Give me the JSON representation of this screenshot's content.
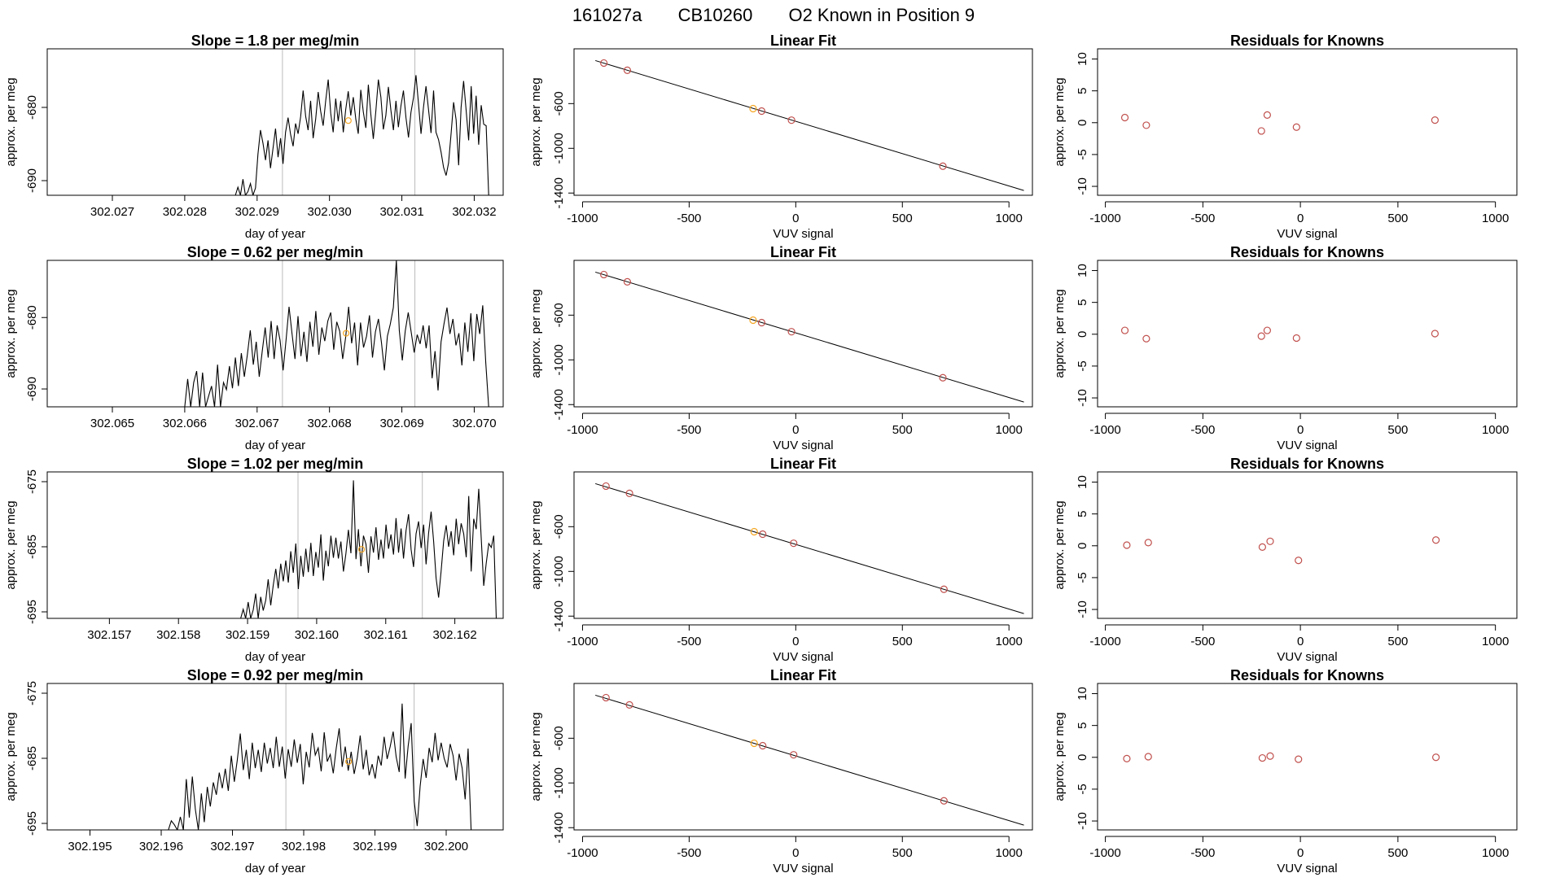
{
  "figure_title": {
    "run_id": "161027a",
    "cylinder": "CB10260",
    "label": "O2 Known in Position  9"
  },
  "colors": {
    "trace": "#000000",
    "marker_open": "#c0504d",
    "marker_highlight": "#f5a623",
    "vline": "#bbbbbb",
    "axis": "#000000"
  },
  "chart_data": [
    {
      "type": "line",
      "row": 1,
      "col": 1,
      "title_prefix": "Slope = ",
      "title_value": "1.8",
      "title_suffix": " per meg/min",
      "xlabel": "day of year",
      "ylabel": "approx. per meg",
      "xlim": [
        302.0261,
        302.0324
      ],
      "ylim": [
        -692,
        -672
      ],
      "xticks": [
        "302.027",
        "302.028",
        "302.029",
        "302.030",
        "302.031",
        "302.032"
      ],
      "yticks": [
        "-680",
        "-690"
      ],
      "vlines": [
        302.02935,
        302.03118
      ],
      "x_start": 302.0287,
      "x_end": 302.0322,
      "marker": {
        "x": 302.03026,
        "y": -681.8
      },
      "y": [
        -692,
        -690.9,
        -692,
        -689.8,
        -692,
        -691.5,
        -690.4,
        -692,
        -691.0,
        -686.4,
        -683.1,
        -684.9,
        -687.2,
        -684.5,
        -688.3,
        -685.6,
        -682.9,
        -686.8,
        -684.2,
        -687.7,
        -683.4,
        -681.4,
        -683.7,
        -685.3,
        -682.2,
        -683.6,
        -681.3,
        -677.7,
        -681.2,
        -683.1,
        -679.1,
        -684.2,
        -681.6,
        -677.9,
        -680.5,
        -682.5,
        -679.1,
        -676.2,
        -680.8,
        -683.4,
        -678.8,
        -681.9,
        -679.1,
        -683.4,
        -680.3,
        -677.8,
        -681.1,
        -678.6,
        -681.6,
        -683.6,
        -677.6,
        -680.6,
        -682.8,
        -676.9,
        -680.9,
        -684.3,
        -680.5,
        -676.2,
        -678.6,
        -683.0,
        -681.1,
        -677.2,
        -680.4,
        -683.1,
        -679.1,
        -682.7,
        -679.8,
        -677.7,
        -681.4,
        -684.1,
        -680.7,
        -678.7,
        -675.6,
        -679.5,
        -683.6,
        -680.0,
        -677.1,
        -680.3,
        -683.5,
        -677.7,
        -683.4,
        -684.4,
        -686.1,
        -688.2,
        -689.3,
        -687.6,
        -683.6,
        -679.3,
        -681.7,
        -687.9,
        -680.0,
        -676.4,
        -680.4,
        -684.5,
        -677.1,
        -683.6,
        -678.4,
        -685.1,
        -679.7,
        -682.3,
        -682.5,
        -692
      ]
    },
    {
      "type": "scatter",
      "row": 1,
      "col": 2,
      "title": "Linear Fit",
      "xlabel": "VUV signal",
      "ylabel": "approx. per meg",
      "xlim": [
        -1040,
        1110
      ],
      "ylim": [
        -1420,
        -110
      ],
      "xticks": [
        -1000,
        -500,
        0,
        500,
        1000
      ],
      "yticks": [
        -600,
        -1000,
        -1400
      ],
      "fit_line": [
        [
          -940,
          -215
        ],
        [
          1070,
          -1377
        ]
      ],
      "points": [
        [
          -900,
          -237,
          "open"
        ],
        [
          -790,
          -302,
          "open"
        ],
        [
          -200,
          -645,
          "highlight"
        ],
        [
          -160,
          -667,
          "open"
        ],
        [
          -20,
          -748,
          "open"
        ],
        [
          690,
          -1160,
          "open"
        ]
      ]
    },
    {
      "type": "scatter",
      "row": 1,
      "col": 3,
      "title": "Residuals for Knowns",
      "xlabel": "VUV signal",
      "ylabel": "approx. per meg",
      "xlim": [
        -1040,
        1110
      ],
      "ylim": [
        -11.4,
        11.6
      ],
      "xticks": [
        -1000,
        -500,
        0,
        500,
        1000
      ],
      "yticks": [
        10,
        5,
        0,
        -5,
        -10
      ],
      "points": [
        [
          -900,
          0.8
        ],
        [
          -790,
          -0.4
        ],
        [
          -200,
          -1.3
        ],
        [
          -170,
          1.2
        ],
        [
          -20,
          -0.7
        ],
        [
          690,
          0.4
        ]
      ]
    },
    {
      "type": "line",
      "row": 2,
      "col": 1,
      "title_prefix": "Slope = ",
      "title_value": "0.62",
      "title_suffix": " per meg/min",
      "xlabel": "day of year",
      "ylabel": "approx. per meg",
      "xlim": [
        302.0641,
        302.0704
      ],
      "ylim": [
        -692.5,
        -672
      ],
      "xticks": [
        "302.065",
        "302.066",
        "302.067",
        "302.068",
        "302.069",
        "302.070"
      ],
      "yticks": [
        "-680",
        "-690"
      ],
      "vlines": [
        302.06735,
        302.06918
      ],
      "x_start": 302.066,
      "x_end": 302.0702,
      "marker": {
        "x": 302.06823,
        "y": -682.2
      },
      "y": [
        -692.5,
        -688.6,
        -692.5,
        -689.1,
        -687.5,
        -692.5,
        -687.7,
        -692.5,
        -691.0,
        -689.6,
        -692.5,
        -686.6,
        -692.5,
        -689.1,
        -690.1,
        -686.8,
        -689.9,
        -685.6,
        -689.6,
        -685.0,
        -688.3,
        -685.2,
        -681.8,
        -686.6,
        -683.4,
        -688.3,
        -684.7,
        -681.4,
        -685.6,
        -680.5,
        -685.8,
        -681.1,
        -683.2,
        -687.4,
        -683.2,
        -678.5,
        -682.3,
        -685.8,
        -679.8,
        -685.4,
        -682.0,
        -686.2,
        -680.6,
        -684.1,
        -679.1,
        -685.2,
        -681.4,
        -683.3,
        -680.5,
        -679.3,
        -684.5,
        -680.6,
        -681.9,
        -685.8,
        -682.8,
        -678.5,
        -683.6,
        -680.7,
        -686.7,
        -680.7,
        -684.2,
        -682.6,
        -679.7,
        -685.6,
        -682.0,
        -680.2,
        -683.5,
        -687.4,
        -682.6,
        -680.9,
        -678.6,
        -672.0,
        -681.8,
        -686.0,
        -681.9,
        -679.3,
        -682.1,
        -684.9,
        -682.4,
        -683.7,
        -681.1,
        -684.3,
        -681.1,
        -688.5,
        -684.7,
        -690.2,
        -683.4,
        -680.9,
        -678.6,
        -682.3,
        -680.2,
        -683.9,
        -682.2,
        -686.7,
        -680.7,
        -684.8,
        -679.4,
        -686.1,
        -679.5,
        -682.3,
        -678.3,
        -686.3,
        -692.5
      ]
    },
    {
      "type": "scatter",
      "row": 2,
      "col": 2,
      "title": "Linear Fit",
      "xlabel": "VUV signal",
      "ylabel": "approx. per meg",
      "xlim": [
        -1040,
        1110
      ],
      "ylim": [
        -1420,
        -110
      ],
      "xticks": [
        -1000,
        -500,
        0,
        500,
        1000
      ],
      "yticks": [
        -600,
        -1000,
        -1400
      ],
      "fit_line": [
        [
          -940,
          -215
        ],
        [
          1070,
          -1377
        ]
      ],
      "points": [
        [
          -900,
          -237,
          "open"
        ],
        [
          -790,
          -302,
          "open"
        ],
        [
          -200,
          -645,
          "highlight"
        ],
        [
          -160,
          -667,
          "open"
        ],
        [
          -20,
          -748,
          "open"
        ],
        [
          690,
          -1160,
          "open"
        ]
      ]
    },
    {
      "type": "scatter",
      "row": 2,
      "col": 3,
      "title": "Residuals for Knowns",
      "xlabel": "VUV signal",
      "ylabel": "approx. per meg",
      "xlim": [
        -1040,
        1110
      ],
      "ylim": [
        -11.4,
        11.6
      ],
      "xticks": [
        -1000,
        -500,
        0,
        500,
        1000
      ],
      "yticks": [
        10,
        5,
        0,
        -5,
        -10
      ],
      "points": [
        [
          -900,
          0.6
        ],
        [
          -790,
          -0.7
        ],
        [
          -200,
          -0.3
        ],
        [
          -170,
          0.6
        ],
        [
          -20,
          -0.6
        ],
        [
          690,
          0.1
        ]
      ]
    },
    {
      "type": "line",
      "row": 3,
      "col": 1,
      "title_prefix": "Slope = ",
      "title_value": "1.02",
      "title_suffix": " per meg/min",
      "xlabel": "day of year",
      "ylabel": "approx. per meg",
      "xlim": [
        302.1561,
        302.1627
      ],
      "ylim": [
        -696,
        -673.5
      ],
      "xticks": [
        "302.157",
        "302.158",
        "302.159",
        "302.160",
        "302.161",
        "302.162"
      ],
      "yticks": [
        "-675",
        "-685",
        "-695"
      ],
      "vlines": [
        302.15973,
        302.16153
      ],
      "x_start": 302.1589,
      "x_end": 302.1626,
      "marker": {
        "x": 302.16065,
        "y": -685.4
      },
      "y": [
        -696,
        -694.6,
        -696,
        -693.5,
        -696,
        -694.7,
        -692.2,
        -696,
        -692.7,
        -694.8,
        -693.2,
        -690.0,
        -694.0,
        -690.9,
        -688.4,
        -691.4,
        -687.6,
        -690.3,
        -687.1,
        -690.5,
        -685.7,
        -689.0,
        -684.5,
        -691.5,
        -686.4,
        -689.6,
        -685.3,
        -688.9,
        -684.4,
        -689.5,
        -685.8,
        -688.2,
        -683.1,
        -690.2,
        -685.6,
        -688.0,
        -683.3,
        -686.7,
        -683.6,
        -686.8,
        -684.2,
        -688.8,
        -686.1,
        -682.4,
        -686.0,
        -674.8,
        -686.9,
        -682.3,
        -688.0,
        -683.3,
        -684.6,
        -689.0,
        -683.4,
        -685.9,
        -682.0,
        -687.0,
        -683.9,
        -686.8,
        -681.6,
        -685.3,
        -683.1,
        -686.2,
        -680.6,
        -685.9,
        -682.2,
        -686.8,
        -682.5,
        -680.0,
        -685.4,
        -688.1,
        -683.0,
        -681.1,
        -685.2,
        -681.6,
        -687.7,
        -682.9,
        -679.6,
        -684.2,
        -689.8,
        -692.8,
        -688.7,
        -684.1,
        -681.7,
        -685.0,
        -682.6,
        -686.3,
        -680.7,
        -684.6,
        -681.4,
        -683.0,
        -686.6,
        -677.2,
        -688.8,
        -680.7,
        -682.3,
        -676.1,
        -683.6,
        -691.0,
        -687.5,
        -684.5,
        -685.1,
        -683.3,
        -696
      ]
    },
    {
      "type": "scatter",
      "row": 3,
      "col": 2,
      "title": "Linear Fit",
      "xlabel": "VUV signal",
      "ylabel": "approx. per meg",
      "xlim": [
        -1040,
        1110
      ],
      "ylim": [
        -1420,
        -110
      ],
      "xticks": [
        -1000,
        -500,
        0,
        500,
        1000
      ],
      "yticks": [
        -600,
        -1000,
        -1400
      ],
      "fit_line": [
        [
          -940,
          -215
        ],
        [
          1070,
          -1377
        ]
      ],
      "points": [
        [
          -890,
          -237,
          "open"
        ],
        [
          -780,
          -302,
          "open"
        ],
        [
          -195,
          -645,
          "highlight"
        ],
        [
          -155,
          -667,
          "open"
        ],
        [
          -10,
          -748,
          "open"
        ],
        [
          695,
          -1160,
          "open"
        ]
      ]
    },
    {
      "type": "scatter",
      "row": 3,
      "col": 3,
      "title": "Residuals for Knowns",
      "xlabel": "VUV signal",
      "ylabel": "approx. per meg",
      "xlim": [
        -1040,
        1110
      ],
      "ylim": [
        -11.4,
        11.6
      ],
      "xticks": [
        -1000,
        -500,
        0,
        500,
        1000
      ],
      "yticks": [
        10,
        5,
        0,
        -5,
        -10
      ],
      "points": [
        [
          -890,
          0.1
        ],
        [
          -780,
          0.5
        ],
        [
          -195,
          -0.2
        ],
        [
          -155,
          0.7
        ],
        [
          -10,
          -2.3
        ],
        [
          695,
          0.9
        ]
      ]
    },
    {
      "type": "line",
      "row": 4,
      "col": 1,
      "title_prefix": "Slope = ",
      "title_value": "0.92",
      "title_suffix": " per meg/min",
      "xlabel": "day of year",
      "ylabel": "approx. per meg",
      "xlim": [
        302.1944,
        302.2008
      ],
      "ylim": [
        -696,
        -673.5
      ],
      "xticks": [
        "302.195",
        "302.196",
        "302.197",
        "302.198",
        "302.199",
        "302.200"
      ],
      "yticks": [
        "-675",
        "-685",
        "-695"
      ],
      "vlines": [
        302.19775,
        302.19955
      ],
      "x_start": 302.1961,
      "x_end": 302.20035,
      "marker": {
        "x": 302.19863,
        "y": -685.5
      },
      "y": [
        -696,
        -694.6,
        -695.2,
        -696,
        -694.0,
        -696,
        -688.2,
        -694.1,
        -687.8,
        -692.8,
        -696,
        -690.4,
        -694.8,
        -689.4,
        -692.4,
        -688.7,
        -690.6,
        -687.2,
        -689.6,
        -686.6,
        -690.0,
        -684.6,
        -688.6,
        -685.3,
        -681.2,
        -686.8,
        -683.7,
        -688.2,
        -682.6,
        -686.5,
        -683.7,
        -687.1,
        -682.6,
        -685.8,
        -683.4,
        -686.5,
        -681.7,
        -686.3,
        -683.2,
        -688.1,
        -683.6,
        -686.3,
        -682.1,
        -685.7,
        -682.8,
        -689.0,
        -684.0,
        -686.4,
        -681.1,
        -684.5,
        -683.4,
        -687.0,
        -681.0,
        -685.5,
        -684.4,
        -687.3,
        -683.5,
        -680.4,
        -686.3,
        -683.2,
        -686.9,
        -684.0,
        -687.4,
        -685.0,
        -681.5,
        -686.7,
        -683.7,
        -687.6,
        -685.9,
        -688.1,
        -684.6,
        -686.1,
        -681.7,
        -685.1,
        -683.2,
        -680.9,
        -684.8,
        -687.1,
        -676.6,
        -688.1,
        -683.1,
        -679.6,
        -691.6,
        -695.4,
        -689.3,
        -685.1,
        -688.0,
        -683.4,
        -685.6,
        -681.1,
        -685.3,
        -682.6,
        -685.0,
        -686.4,
        -682.8,
        -684.6,
        -688.4,
        -684.3,
        -686.5,
        -691.3,
        -683.5,
        -696
      ]
    },
    {
      "type": "scatter",
      "row": 4,
      "col": 2,
      "title": "Linear Fit",
      "xlabel": "VUV signal",
      "ylabel": "approx. per meg",
      "xlim": [
        -1040,
        1110
      ],
      "ylim": [
        -1420,
        -110
      ],
      "xticks": [
        -1000,
        -500,
        0,
        500,
        1000
      ],
      "yticks": [
        -600,
        -1000,
        -1400
      ],
      "fit_line": [
        [
          -940,
          -215
        ],
        [
          1070,
          -1377
        ]
      ],
      "points": [
        [
          -890,
          -237,
          "open"
        ],
        [
          -780,
          -302,
          "open"
        ],
        [
          -195,
          -645,
          "highlight"
        ],
        [
          -155,
          -667,
          "open"
        ],
        [
          -10,
          -748,
          "open"
        ],
        [
          695,
          -1160,
          "open"
        ]
      ]
    },
    {
      "type": "scatter",
      "row": 4,
      "col": 3,
      "title": "Residuals for Knowns",
      "xlabel": "VUV signal",
      "ylabel": "approx. per meg",
      "xlim": [
        -1040,
        1110
      ],
      "ylim": [
        -11.4,
        11.6
      ],
      "xticks": [
        -1000,
        -500,
        0,
        500,
        1000
      ],
      "yticks": [
        10,
        5,
        0,
        -5,
        -10
      ],
      "points": [
        [
          -890,
          -0.2
        ],
        [
          -780,
          0.1
        ],
        [
          -195,
          -0.1
        ],
        [
          -155,
          0.2
        ],
        [
          -10,
          -0.3
        ],
        [
          695,
          0.0
        ]
      ]
    }
  ]
}
